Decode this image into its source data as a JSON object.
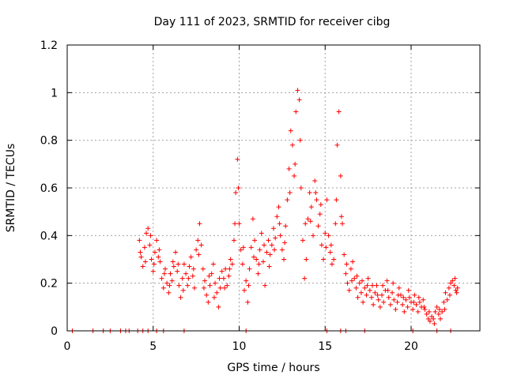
{
  "chart_data": {
    "type": "scatter",
    "title": "Day 111 of 2023, SRMTID for receiver cibg",
    "xlabel": "GPS time / hours",
    "ylabel": "SRMTID / TECUs",
    "xlim": [
      0,
      24
    ],
    "ylim": [
      0,
      1.2
    ],
    "xticks": [
      0,
      5,
      10,
      15,
      20
    ],
    "yticks": [
      0,
      0.2,
      0.4,
      0.6,
      0.8,
      1,
      1.2
    ],
    "xtick_labels": [
      "0",
      "5",
      "10",
      "15",
      "20"
    ],
    "ytick_labels": [
      "0",
      "0.2",
      "0.4",
      "0.6",
      "0.8",
      "1",
      "1.2"
    ],
    "grid": true,
    "marker": "+",
    "marker_color": "#ff0000",
    "series": [
      {
        "name": "SRMTID",
        "points": [
          [
            0.3,
            0.0
          ],
          [
            1.5,
            0.0
          ],
          [
            2.1,
            0.0
          ],
          [
            2.5,
            0.0
          ],
          [
            3.1,
            0.0
          ],
          [
            3.4,
            0.0
          ],
          [
            3.6,
            0.0
          ],
          [
            4.1,
            0.0
          ],
          [
            4.4,
            0.0
          ],
          [
            4.7,
            0.0
          ],
          [
            5.2,
            0.0
          ],
          [
            5.6,
            0.0
          ],
          [
            6.8,
            0.0
          ],
          [
            10.4,
            0.0
          ],
          [
            15.1,
            0.0
          ],
          [
            15.9,
            0.0
          ],
          [
            16.2,
            0.0
          ],
          [
            17.3,
            0.0
          ],
          [
            20.1,
            0.0
          ],
          [
            21.5,
            0.0
          ],
          [
            22.3,
            0.0
          ],
          [
            4.2,
            0.38
          ],
          [
            4.3,
            0.31
          ],
          [
            4.4,
            0.27
          ],
          [
            4.5,
            0.35
          ],
          [
            4.6,
            0.41
          ],
          [
            4.7,
            0.43
          ],
          [
            4.8,
            0.36
          ],
          [
            4.9,
            0.3
          ],
          [
            5.0,
            0.25
          ],
          [
            5.1,
            0.33
          ],
          [
            5.2,
            0.38
          ],
          [
            5.3,
            0.31
          ],
          [
            5.4,
            0.29
          ],
          [
            5.5,
            0.22
          ],
          [
            5.6,
            0.18
          ],
          [
            5.7,
            0.26
          ],
          [
            5.8,
            0.2
          ],
          [
            5.9,
            0.16
          ],
          [
            6.0,
            0.24
          ],
          [
            6.1,
            0.21
          ],
          [
            6.2,
            0.27
          ],
          [
            6.3,
            0.33
          ],
          [
            6.4,
            0.25
          ],
          [
            6.5,
            0.19
          ],
          [
            6.6,
            0.14
          ],
          [
            6.7,
            0.22
          ],
          [
            6.8,
            0.28
          ],
          [
            6.9,
            0.24
          ],
          [
            7.0,
            0.19
          ],
          [
            7.1,
            0.27
          ],
          [
            7.2,
            0.31
          ],
          [
            7.3,
            0.23
          ],
          [
            7.4,
            0.18
          ],
          [
            7.5,
            0.34
          ],
          [
            7.6,
            0.38
          ],
          [
            7.7,
            0.45
          ],
          [
            7.8,
            0.36
          ],
          [
            7.9,
            0.26
          ],
          [
            8.0,
            0.21
          ],
          [
            8.1,
            0.15
          ],
          [
            8.2,
            0.12
          ],
          [
            8.3,
            0.19
          ],
          [
            8.4,
            0.24
          ],
          [
            8.5,
            0.28
          ],
          [
            8.6,
            0.2
          ],
          [
            8.7,
            0.16
          ],
          [
            8.8,
            0.1
          ],
          [
            8.9,
            0.18
          ],
          [
            9.0,
            0.25
          ],
          [
            9.1,
            0.22
          ],
          [
            9.2,
            0.26
          ],
          [
            9.3,
            0.19
          ],
          [
            9.4,
            0.23
          ],
          [
            9.5,
            0.3
          ],
          [
            9.6,
            0.28
          ],
          [
            9.7,
            0.38
          ],
          [
            9.8,
            0.58
          ],
          [
            9.9,
            0.72
          ],
          [
            10.0,
            0.45
          ],
          [
            10.1,
            0.34
          ],
          [
            10.2,
            0.28
          ],
          [
            10.3,
            0.17
          ],
          [
            10.4,
            0.21
          ],
          [
            10.5,
            0.12
          ],
          [
            10.6,
            0.26
          ],
          [
            10.7,
            0.35
          ],
          [
            10.8,
            0.47
          ],
          [
            10.9,
            0.38
          ],
          [
            11.0,
            0.3
          ],
          [
            11.1,
            0.24
          ],
          [
            11.2,
            0.34
          ],
          [
            11.3,
            0.41
          ],
          [
            11.4,
            0.29
          ],
          [
            11.5,
            0.19
          ],
          [
            11.6,
            0.33
          ],
          [
            11.7,
            0.38
          ],
          [
            11.8,
            0.32
          ],
          [
            11.9,
            0.36
          ],
          [
            12.0,
            0.43
          ],
          [
            12.1,
            0.39
          ],
          [
            12.2,
            0.48
          ],
          [
            12.3,
            0.52
          ],
          [
            12.4,
            0.4
          ],
          [
            12.5,
            0.34
          ],
          [
            12.6,
            0.3
          ],
          [
            12.7,
            0.44
          ],
          [
            12.8,
            0.55
          ],
          [
            12.9,
            0.68
          ],
          [
            13.0,
            0.84
          ],
          [
            13.1,
            0.78
          ],
          [
            13.2,
            0.65
          ],
          [
            13.3,
            0.92
          ],
          [
            13.4,
            1.01
          ],
          [
            13.5,
            0.97
          ],
          [
            13.6,
            0.6
          ],
          [
            13.7,
            0.38
          ],
          [
            13.8,
            0.22
          ],
          [
            13.9,
            0.3
          ],
          [
            14.0,
            0.47
          ],
          [
            14.1,
            0.58
          ],
          [
            14.2,
            0.52
          ],
          [
            14.3,
            0.4
          ],
          [
            14.4,
            0.63
          ],
          [
            14.5,
            0.55
          ],
          [
            14.6,
            0.44
          ],
          [
            14.7,
            0.49
          ],
          [
            14.8,
            0.36
          ],
          [
            14.9,
            0.3
          ],
          [
            15.0,
            0.41
          ],
          [
            15.1,
            0.55
          ],
          [
            15.2,
            0.4
          ],
          [
            15.3,
            0.33
          ],
          [
            15.4,
            0.28
          ],
          [
            15.5,
            0.3
          ],
          [
            15.6,
            0.45
          ],
          [
            15.7,
            0.78
          ],
          [
            15.8,
            0.92
          ],
          [
            15.9,
            0.65
          ],
          [
            16.0,
            0.45
          ],
          [
            16.1,
            0.32
          ],
          [
            16.2,
            0.24
          ],
          [
            16.3,
            0.2
          ],
          [
            16.4,
            0.17
          ],
          [
            16.5,
            0.26
          ],
          [
            16.6,
            0.29
          ],
          [
            16.7,
            0.22
          ],
          [
            16.8,
            0.18
          ],
          [
            16.9,
            0.14
          ],
          [
            17.0,
            0.2
          ],
          [
            17.1,
            0.16
          ],
          [
            17.2,
            0.12
          ],
          [
            17.3,
            0.18
          ],
          [
            17.4,
            0.15
          ],
          [
            17.5,
            0.22
          ],
          [
            17.6,
            0.17
          ],
          [
            17.7,
            0.14
          ],
          [
            17.8,
            0.11
          ],
          [
            17.9,
            0.16
          ],
          [
            18.0,
            0.19
          ],
          [
            18.1,
            0.13
          ],
          [
            18.2,
            0.1
          ],
          [
            18.3,
            0.15
          ],
          [
            18.4,
            0.12
          ],
          [
            18.5,
            0.17
          ],
          [
            18.6,
            0.21
          ],
          [
            18.7,
            0.14
          ],
          [
            18.8,
            0.11
          ],
          [
            18.9,
            0.16
          ],
          [
            19.0,
            0.13
          ],
          [
            19.1,
            0.09
          ],
          [
            19.2,
            0.12
          ],
          [
            19.3,
            0.18
          ],
          [
            19.4,
            0.15
          ],
          [
            19.5,
            0.11
          ],
          [
            19.6,
            0.08
          ],
          [
            19.7,
            0.13
          ],
          [
            19.8,
            0.1
          ],
          [
            19.9,
            0.14
          ],
          [
            20.0,
            0.12
          ],
          [
            20.1,
            0.09
          ],
          [
            20.2,
            0.15
          ],
          [
            20.3,
            0.11
          ],
          [
            20.4,
            0.08
          ],
          [
            20.5,
            0.12
          ],
          [
            20.6,
            0.1
          ],
          [
            20.7,
            0.13
          ],
          [
            20.8,
            0.09
          ],
          [
            20.9,
            0.07
          ],
          [
            21.0,
            0.05
          ],
          [
            21.1,
            0.04
          ],
          [
            21.2,
            0.06
          ],
          [
            21.3,
            0.05
          ],
          [
            21.4,
            0.08
          ],
          [
            21.5,
            0.1
          ],
          [
            21.6,
            0.07
          ],
          [
            21.7,
            0.05
          ],
          [
            21.8,
            0.08
          ],
          [
            21.9,
            0.12
          ],
          [
            22.0,
            0.16
          ],
          [
            22.1,
            0.13
          ],
          [
            22.2,
            0.18
          ],
          [
            22.3,
            0.2
          ],
          [
            22.4,
            0.21
          ],
          [
            22.5,
            0.19
          ],
          [
            22.6,
            0.17
          ],
          [
            22.7,
            0.18
          ],
          [
            4.25,
            0.33
          ],
          [
            4.55,
            0.29
          ],
          [
            4.85,
            0.4
          ],
          [
            5.05,
            0.28
          ],
          [
            5.35,
            0.34
          ],
          [
            5.65,
            0.24
          ],
          [
            5.95,
            0.19
          ],
          [
            6.15,
            0.29
          ],
          [
            6.45,
            0.28
          ],
          [
            6.75,
            0.17
          ],
          [
            7.05,
            0.22
          ],
          [
            7.35,
            0.26
          ],
          [
            7.65,
            0.32
          ],
          [
            7.95,
            0.18
          ],
          [
            8.25,
            0.23
          ],
          [
            8.55,
            0.14
          ],
          [
            8.85,
            0.22
          ],
          [
            9.15,
            0.18
          ],
          [
            9.45,
            0.26
          ],
          [
            9.75,
            0.45
          ],
          [
            9.95,
            0.6
          ],
          [
            10.25,
            0.35
          ],
          [
            10.55,
            0.19
          ],
          [
            10.85,
            0.31
          ],
          [
            11.15,
            0.28
          ],
          [
            11.45,
            0.36
          ],
          [
            11.75,
            0.27
          ],
          [
            12.05,
            0.34
          ],
          [
            12.35,
            0.45
          ],
          [
            12.65,
            0.37
          ],
          [
            12.95,
            0.58
          ],
          [
            13.25,
            0.7
          ],
          [
            13.55,
            0.8
          ],
          [
            13.85,
            0.45
          ],
          [
            14.15,
            0.46
          ],
          [
            14.45,
            0.58
          ],
          [
            14.75,
            0.53
          ],
          [
            15.05,
            0.35
          ],
          [
            15.35,
            0.36
          ],
          [
            15.65,
            0.55
          ],
          [
            15.95,
            0.48
          ],
          [
            16.25,
            0.28
          ],
          [
            16.55,
            0.21
          ],
          [
            16.85,
            0.23
          ],
          [
            17.15,
            0.21
          ],
          [
            17.45,
            0.19
          ],
          [
            17.75,
            0.19
          ],
          [
            18.05,
            0.15
          ],
          [
            18.35,
            0.19
          ],
          [
            18.65,
            0.17
          ],
          [
            18.95,
            0.2
          ],
          [
            19.25,
            0.15
          ],
          [
            19.55,
            0.14
          ],
          [
            19.85,
            0.17
          ],
          [
            20.15,
            0.12
          ],
          [
            20.45,
            0.14
          ],
          [
            20.75,
            0.1
          ],
          [
            21.05,
            0.08
          ],
          [
            21.35,
            0.03
          ],
          [
            21.65,
            0.09
          ],
          [
            21.95,
            0.09
          ],
          [
            22.25,
            0.15
          ],
          [
            22.55,
            0.22
          ],
          [
            22.65,
            0.16
          ]
        ]
      }
    ]
  }
}
